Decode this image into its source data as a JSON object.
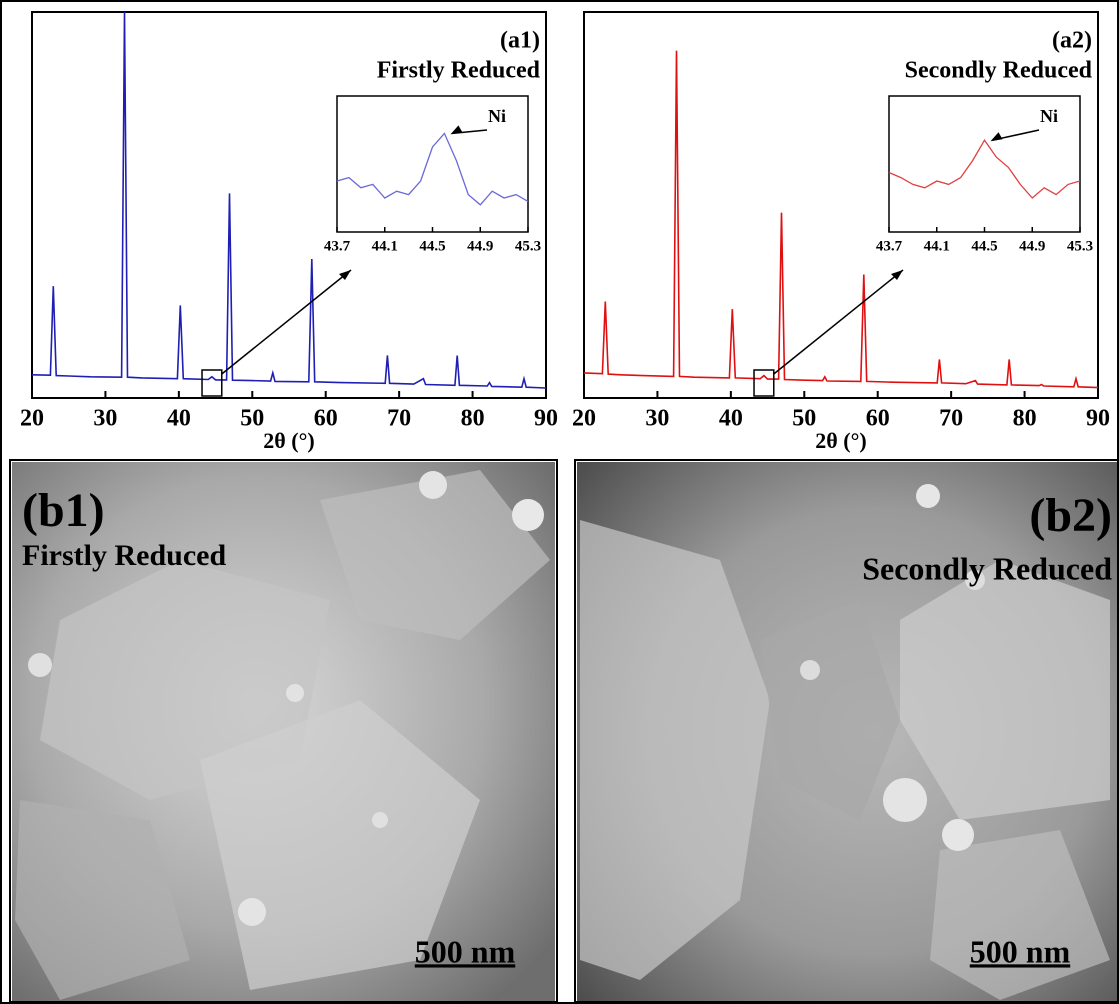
{
  "chart_data": [
    {
      "type": "line",
      "title": "(a1)",
      "subtitle": "Firstly Reduced",
      "x_label": "2θ (°)",
      "x": [
        20,
        22.5,
        22.9,
        23.3,
        25,
        28,
        32.2,
        32.6,
        33.0,
        35,
        39.8,
        40.2,
        40.6,
        44,
        44.5,
        45,
        46.5,
        46.9,
        47.3,
        50,
        52.5,
        52.8,
        53.1,
        57.7,
        58.1,
        58.5,
        62,
        68.1,
        68.4,
        68.7,
        72,
        73.3,
        73.6,
        77.6,
        77.9,
        78.2,
        82,
        82.3,
        82.6,
        86.7,
        87,
        87.3,
        90
      ],
      "series": [
        {
          "color": "#1f1fb4",
          "values": [
            6,
            5.9,
            29,
            5.8,
            5.7,
            5.5,
            5.4,
            100,
            5.4,
            5.2,
            5,
            24,
            5,
            4.8,
            5.5,
            4.7,
            4.7,
            53,
            4.6,
            4.5,
            4.4,
            6.5,
            4.3,
            4.2,
            36,
            4.2,
            4,
            3.8,
            11,
            3.8,
            3.6,
            5,
            3.5,
            3.3,
            11,
            3.3,
            3.1,
            4,
            3,
            2.8,
            5,
            2.8,
            2.6
          ]
        }
      ],
      "xlim": [
        20,
        90
      ],
      "xticks": [
        20,
        30,
        40,
        50,
        60,
        70,
        80,
        90
      ],
      "ylim": [
        0,
        100
      ],
      "inset": {
        "x": [
          43.7,
          43.8,
          43.9,
          44.0,
          44.1,
          44.2,
          44.3,
          44.4,
          44.5,
          44.6,
          44.7,
          44.8,
          44.9,
          45.0,
          45.1,
          45.2,
          45.3
        ],
        "values": [
          50,
          52,
          46,
          48,
          40,
          44,
          42,
          50,
          70,
          78,
          62,
          42,
          36,
          44,
          40,
          42,
          38
        ],
        "color": "#6a6ad8",
        "xlim": [
          43.7,
          45.3
        ],
        "xticks": [
          43.7,
          44.1,
          44.5,
          44.9,
          45.3
        ],
        "ylim": [
          20,
          100
        ],
        "annotation": "Ni"
      }
    },
    {
      "type": "line",
      "title": "(a2)",
      "subtitle": "Secondly Reduced",
      "x_label": "2θ (°)",
      "x": [
        20,
        22.5,
        22.9,
        23.3,
        25,
        28,
        32.2,
        32.6,
        33.0,
        35,
        39.8,
        40.2,
        40.6,
        44,
        44.5,
        45,
        46.5,
        46.9,
        47.3,
        50,
        52.5,
        52.8,
        53.1,
        57.7,
        58.1,
        58.5,
        62,
        68.1,
        68.4,
        68.7,
        72,
        73.3,
        73.6,
        77.6,
        77.9,
        78.2,
        82,
        82.3,
        82.6,
        86.7,
        87,
        87.3,
        90
      ],
      "series": [
        {
          "color": "#e01010",
          "values": [
            6.5,
            6.3,
            25,
            6.2,
            6,
            5.8,
            5.6,
            90,
            5.6,
            5.4,
            5.2,
            23,
            5.2,
            5,
            5.8,
            4.9,
            4.9,
            48,
            4.8,
            4.6,
            4.5,
            5.5,
            4.4,
            4.3,
            32,
            4.3,
            4.1,
            3.9,
            10,
            3.9,
            3.7,
            4.5,
            3.6,
            3.4,
            10,
            3.4,
            3.2,
            3.5,
            3.1,
            2.9,
            5,
            2.9,
            2.7
          ]
        }
      ],
      "xlim": [
        20,
        90
      ],
      "xticks": [
        20,
        30,
        40,
        50,
        60,
        70,
        80,
        90
      ],
      "ylim": [
        0,
        100
      ],
      "inset": {
        "x": [
          43.7,
          43.8,
          43.9,
          44.0,
          44.1,
          44.2,
          44.3,
          44.4,
          44.5,
          44.6,
          44.7,
          44.8,
          44.9,
          45.0,
          45.1,
          45.2,
          45.3
        ],
        "values": [
          55,
          52,
          48,
          46,
          50,
          48,
          52,
          62,
          74,
          64,
          58,
          48,
          40,
          46,
          42,
          48,
          50
        ],
        "color": "#e04040",
        "xlim": [
          43.7,
          45.3
        ],
        "xticks": [
          43.7,
          44.1,
          44.5,
          44.9,
          45.3
        ],
        "ylim": [
          20,
          100
        ],
        "annotation": "Ni"
      }
    }
  ],
  "images": [
    {
      "label": "(b1)",
      "caption": "Firstly Reduced",
      "scale_bar": "500 nm"
    },
    {
      "label": "(b2)",
      "caption": "Secondly Reduced",
      "scale_bar": "500 nm"
    }
  ]
}
